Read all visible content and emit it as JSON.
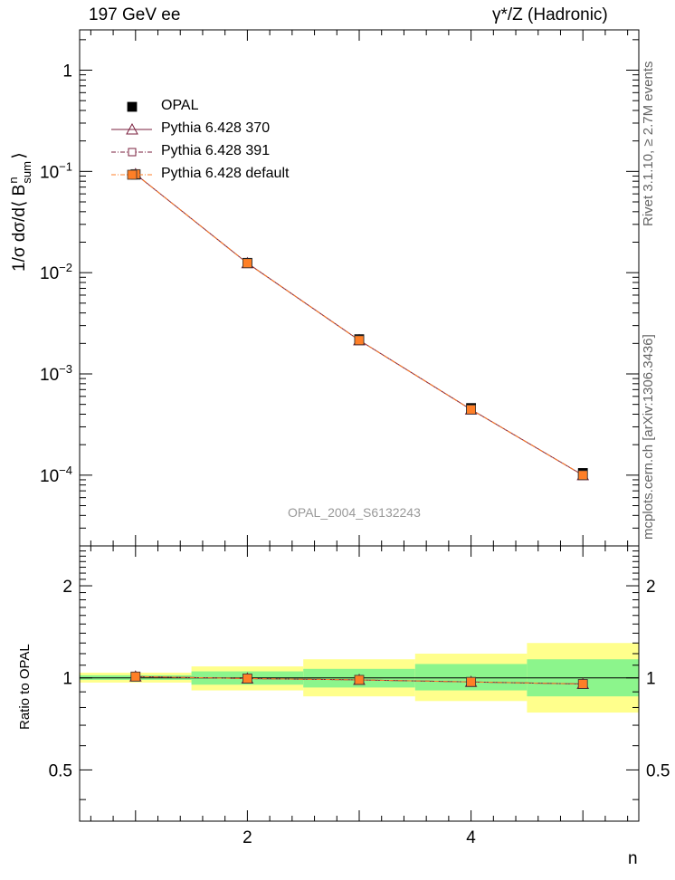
{
  "header": {
    "left": "197 GeV ee",
    "right": "γ*/Z (Hadronic)"
  },
  "side": {
    "rivet": "Rivet 3.1.10, ≥ 2.7M events",
    "mcplots": "mcplots.cern.ch [arXiv:1306.3436]"
  },
  "watermark": "OPAL_2004_S6132243",
  "chart_data": [
    {
      "type": "scatter",
      "panel": "main",
      "ylabel": "1/σ dσ/d⟨ B",
      "ylabel_sup": "n",
      "ylabel_sub": "sum",
      "ylabel_close": "⟩",
      "xlim": [
        0.5,
        5.5
      ],
      "ylim": [
        2e-05,
        2.5
      ],
      "yscale": "log",
      "yticks": [
        {
          "value": 1,
          "base": "1",
          "exp": ""
        },
        {
          "value": 0.1,
          "base": "10",
          "exp": "−1"
        },
        {
          "value": 0.01,
          "base": "10",
          "exp": "−2"
        },
        {
          "value": 0.001,
          "base": "10",
          "exp": "−3"
        },
        {
          "value": 0.0001,
          "base": "10",
          "exp": "−4"
        }
      ],
      "legend_position": "top-left",
      "x": [
        1,
        2,
        3,
        4,
        5
      ],
      "series": [
        {
          "name": "OPAL",
          "values": [
            0.093,
            0.0125,
            0.0022,
            0.00046,
            0.000105
          ],
          "color": "#000000",
          "marker": "filled-square",
          "line": "none"
        },
        {
          "name": "Pythia 6.428 370",
          "values": [
            0.094,
            0.0124,
            0.00215,
            0.000445,
            0.0001
          ],
          "color": "#7a1f3d",
          "marker": "open-triangle",
          "line": "solid"
        },
        {
          "name": "Pythia 6.428 391",
          "values": [
            0.094,
            0.0124,
            0.00215,
            0.000445,
            0.0001
          ],
          "color": "#7a1f3d",
          "marker": "open-square",
          "line": "dash-dot"
        },
        {
          "name": "Pythia 6.428 default",
          "values": [
            0.094,
            0.0124,
            0.00215,
            0.000445,
            0.0001
          ],
          "color": "#ff7f27",
          "marker": "filled-square",
          "line": "dash-dot"
        }
      ]
    },
    {
      "type": "scatter",
      "panel": "ratio",
      "ylabel": "Ratio to OPAL",
      "xlabel": "n",
      "xlim": [
        0.5,
        5.5
      ],
      "ylim": [
        0.34,
        2.7
      ],
      "yscale": "log",
      "yticks": [
        {
          "value": 0.5,
          "label": "0.5"
        },
        {
          "value": 1,
          "label": "1"
        },
        {
          "value": 2,
          "label": "2"
        }
      ],
      "xticks": [
        {
          "value": 2,
          "label": "2"
        },
        {
          "value": 4,
          "label": "4"
        }
      ],
      "bands": [
        {
          "x": [
            0.5,
            1.5
          ],
          "inner": [
            0.985,
            1.02
          ],
          "outer": [
            0.965,
            1.04
          ]
        },
        {
          "x": [
            1.5,
            2.5
          ],
          "inner": [
            0.95,
            1.05
          ],
          "outer": [
            0.91,
            1.09
          ]
        },
        {
          "x": [
            2.5,
            3.5
          ],
          "inner": [
            0.93,
            1.07
          ],
          "outer": [
            0.87,
            1.15
          ]
        },
        {
          "x": [
            3.5,
            4.5
          ],
          "inner": [
            0.91,
            1.11
          ],
          "outer": [
            0.84,
            1.2
          ]
        },
        {
          "x": [
            4.5,
            5.5
          ],
          "inner": [
            0.87,
            1.15
          ],
          "outer": [
            0.77,
            1.3
          ]
        }
      ],
      "x": [
        1,
        2,
        3,
        4,
        5
      ],
      "series": [
        {
          "name": "Pythia 6.428 370",
          "values": [
            1.01,
            0.995,
            0.985,
            0.97,
            0.955
          ],
          "color": "#7a1f3d"
        },
        {
          "name": "Pythia 6.428 391",
          "values": [
            1.01,
            0.995,
            0.985,
            0.97,
            0.955
          ],
          "color": "#7a1f3d"
        },
        {
          "name": "Pythia 6.428 default",
          "values": [
            1.01,
            0.995,
            0.985,
            0.97,
            0.955
          ],
          "color": "#ff7f27"
        }
      ]
    }
  ]
}
